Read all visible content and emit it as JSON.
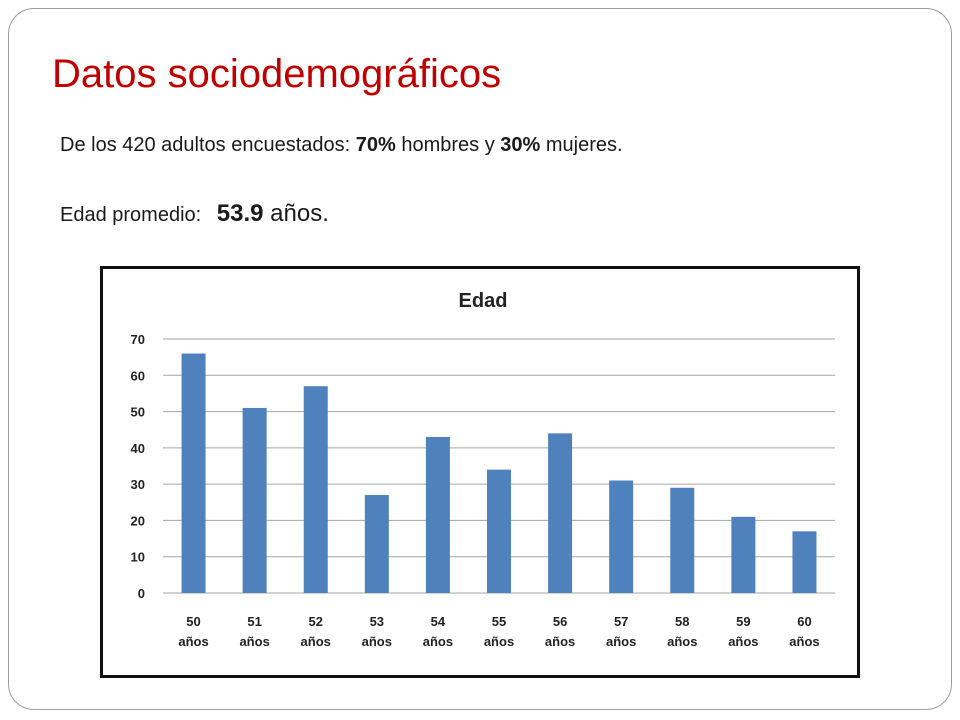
{
  "slide": {
    "title": "Datos sociodemográficos",
    "line1": {
      "prefix": "De los 420 adultos encuestados: ",
      "men_pct": "70%",
      "middle": " hombres y ",
      "women_pct": "30%",
      "suffix": " mujeres."
    },
    "line2": {
      "label": "Edad promedio:",
      "value": "53.9",
      "unit": " años."
    }
  },
  "colors": {
    "title": "#c00000",
    "bar": "#4f81bd",
    "grid": "#a6a6a6"
  },
  "chart_data": {
    "type": "bar",
    "title": "Edad",
    "categories": [
      [
        "50",
        "años"
      ],
      [
        "51",
        "años"
      ],
      [
        "52",
        "años"
      ],
      [
        "53",
        "años"
      ],
      [
        "54",
        "años"
      ],
      [
        "55",
        "años"
      ],
      [
        "56",
        "años"
      ],
      [
        "57",
        "años"
      ],
      [
        "58",
        "años"
      ],
      [
        "59",
        "años"
      ],
      [
        "60",
        "años"
      ]
    ],
    "values": [
      66,
      51,
      57,
      27,
      43,
      34,
      44,
      31,
      29,
      21,
      17
    ],
    "ylim": [
      0,
      70
    ],
    "yticks": [
      0,
      10,
      20,
      30,
      40,
      50,
      60,
      70
    ],
    "grid": true
  }
}
